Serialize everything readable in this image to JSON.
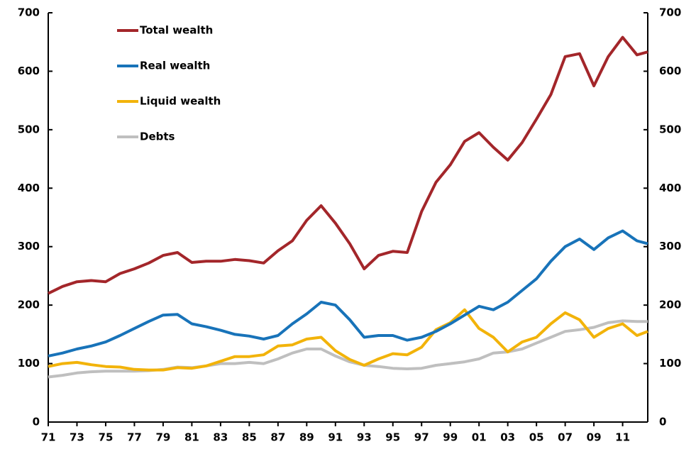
{
  "chart_data": {
    "type": "line",
    "x": [
      1971,
      1972,
      1973,
      1974,
      1975,
      1976,
      1977,
      1978,
      1979,
      1980,
      1981,
      1982,
      1983,
      1984,
      1985,
      1986,
      1987,
      1988,
      1989,
      1990,
      1991,
      1992,
      1993,
      1994,
      1995,
      1996,
      1997,
      1998,
      1999,
      2000,
      2001,
      2002,
      2003,
      2004,
      2005,
      2006,
      2007,
      2008,
      2009,
      2010,
      2011,
      2012,
      2012.75
    ],
    "series": [
      {
        "name": "Total wealth",
        "color": "#a3262a",
        "values": [
          220,
          232,
          240,
          242,
          240,
          254,
          262,
          272,
          285,
          290,
          273,
          275,
          275,
          278,
          276,
          272,
          293,
          310,
          345,
          370,
          340,
          305,
          262,
          285,
          292,
          290,
          360,
          410,
          440,
          480,
          495,
          470,
          448,
          478,
          518,
          560,
          625,
          630,
          575,
          625,
          658,
          628,
          633
        ]
      },
      {
        "name": "Real wealth",
        "color": "#1873b9",
        "values": [
          113,
          118,
          125,
          130,
          137,
          148,
          160,
          172,
          183,
          184,
          168,
          163,
          157,
          150,
          147,
          142,
          148,
          168,
          185,
          205,
          200,
          175,
          145,
          148,
          148,
          140,
          145,
          155,
          168,
          183,
          198,
          192,
          205,
          225,
          245,
          275,
          300,
          313,
          295,
          315,
          327,
          310,
          305
        ]
      },
      {
        "name": "Liquid wealth",
        "color": "#f2b30a",
        "values": [
          95,
          100,
          102,
          98,
          95,
          94,
          90,
          89,
          89,
          93,
          92,
          96,
          104,
          112,
          112,
          115,
          130,
          132,
          142,
          145,
          122,
          107,
          97,
          108,
          117,
          115,
          128,
          158,
          170,
          192,
          160,
          145,
          120,
          137,
          145,
          168,
          187,
          175,
          145,
          160,
          168,
          148,
          155
        ]
      },
      {
        "name": "Debts",
        "color": "#bfbfbf",
        "values": [
          77,
          80,
          84,
          86,
          87,
          87,
          87,
          88,
          90,
          94,
          93,
          96,
          100,
          100,
          102,
          100,
          108,
          118,
          125,
          125,
          113,
          103,
          97,
          95,
          92,
          91,
          92,
          97,
          100,
          103,
          108,
          118,
          120,
          125,
          135,
          145,
          155,
          158,
          162,
          170,
          173,
          172,
          172
        ]
      }
    ],
    "xlim": [
      1971,
      2012.75
    ],
    "xticks": [
      {
        "value": 1971,
        "label": "71"
      },
      {
        "value": 1973,
        "label": "73"
      },
      {
        "value": 1975,
        "label": "75"
      },
      {
        "value": 1977,
        "label": "77"
      },
      {
        "value": 1979,
        "label": "79"
      },
      {
        "value": 1981,
        "label": "81"
      },
      {
        "value": 1983,
        "label": "83"
      },
      {
        "value": 1985,
        "label": "85"
      },
      {
        "value": 1987,
        "label": "87"
      },
      {
        "value": 1989,
        "label": "89"
      },
      {
        "value": 1991,
        "label": "91"
      },
      {
        "value": 1993,
        "label": "93"
      },
      {
        "value": 1995,
        "label": "95"
      },
      {
        "value": 1997,
        "label": "97"
      },
      {
        "value": 1999,
        "label": "99"
      },
      {
        "value": 2001,
        "label": "01"
      },
      {
        "value": 2003,
        "label": "03"
      },
      {
        "value": 2005,
        "label": "05"
      },
      {
        "value": 2007,
        "label": "07"
      },
      {
        "value": 2009,
        "label": "09"
      },
      {
        "value": 2011,
        "label": "11"
      }
    ],
    "ylim": [
      0,
      700
    ],
    "yticks": [
      0,
      100,
      200,
      300,
      400,
      500,
      600,
      700
    ],
    "y2lim": [
      0,
      700
    ],
    "y2ticks": [
      0,
      100,
      200,
      300,
      400,
      500,
      600,
      700
    ],
    "grid": false,
    "legend": "upper-left"
  }
}
